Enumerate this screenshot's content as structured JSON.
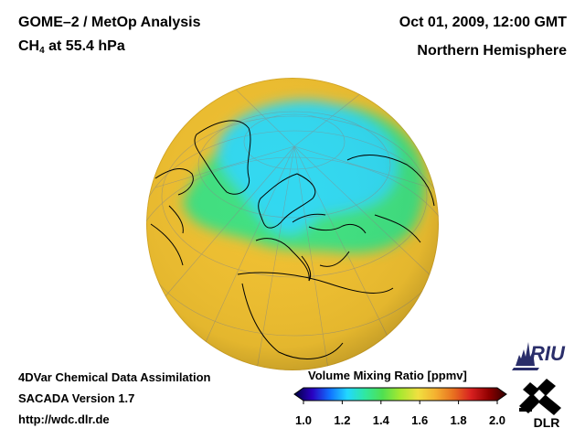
{
  "header": {
    "title": "GOME–2 / MetOp Analysis",
    "species": "CH",
    "species_sub": "4",
    "level": " at 55.4 hPa",
    "datetime": "Oct 01, 2009, 12:00 GMT",
    "region": "Northern Hemisphere"
  },
  "footer": {
    "method": "4DVar Chemical Data Assimilation",
    "version": "SACADA Version 1.7",
    "url": "http://wdc.dlr.de"
  },
  "colorbar": {
    "title": "Volume Mixing Ratio [ppmv]",
    "min": 1.0,
    "max": 2.0,
    "ticks": [
      "1.0",
      "1.2",
      "1.4",
      "1.6",
      "1.8",
      "2.0"
    ],
    "colors": [
      "#000040",
      "#2a00c0",
      "#1070ff",
      "#22d8ff",
      "#30e8a0",
      "#50e050",
      "#a8e830",
      "#f0e040",
      "#f4b030",
      "#e87020",
      "#d82020",
      "#900000",
      "#300000"
    ]
  },
  "logos": {
    "riu": "RIU",
    "dlr": "DLR"
  },
  "map": {
    "projection": "orthographic",
    "colors": {
      "background_field": "#f0c030",
      "low_methane": "#30d8f0",
      "mid_methane": "#40e080",
      "coastline": "#000000",
      "graticule": "#888888"
    }
  }
}
